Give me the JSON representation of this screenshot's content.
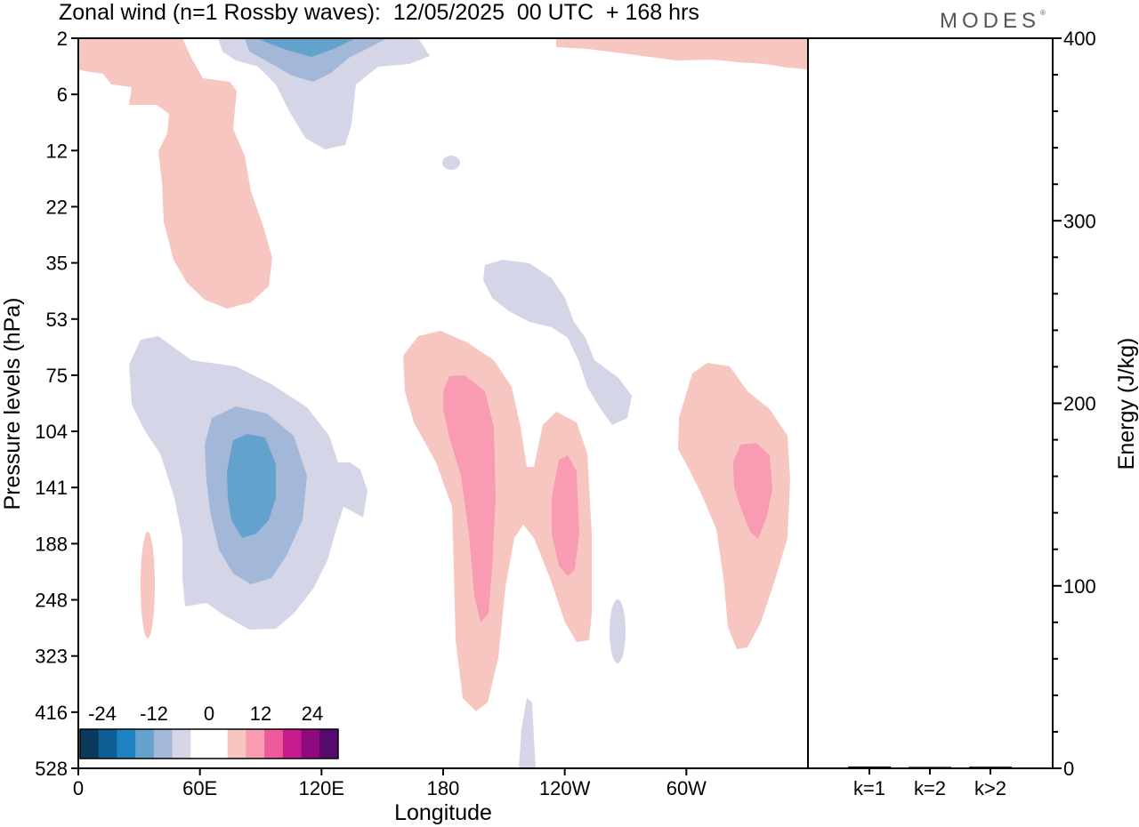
{
  "title": "Zonal wind (n=1 Rossby waves):  12/05/2025  00 UTC  + 168 hrs",
  "logo": "MODES",
  "logo_mark": "®",
  "colors": {
    "neg_levels": [
      "#0c3a5c",
      "#0d5f95",
      "#1e82c0",
      "#62a2cc",
      "#a3b8d8",
      "#d4d6e7"
    ],
    "neutral": "#ffffff",
    "pos_levels": [
      "#f8c6c1",
      "#f89bb3",
      "#ee5b9d",
      "#c81c8e",
      "#8e0b7f",
      "#560a6e"
    ]
  },
  "chart_data": [
    {
      "type": "heatmap",
      "title": "Zonal wind (n=1 Rossby waves):  12/05/2025  00 UTC  + 168 hrs",
      "xlabel": "Longitude",
      "ylabel": "Pressure levels (hPa)",
      "x_ticks": [
        "0",
        "60E",
        "120E",
        "180",
        "120W",
        "60W"
      ],
      "x_tick_degrees": [
        0,
        60,
        120,
        180,
        240,
        300
      ],
      "xlim": [
        0,
        360
      ],
      "y_ticks": [
        "2",
        "6",
        "12",
        "22",
        "35",
        "53",
        "75",
        "104",
        "141",
        "188",
        "248",
        "323",
        "416",
        "528"
      ],
      "colorbar": {
        "labels": [
          "-24",
          "-12",
          "0",
          "12",
          "24"
        ],
        "label_values": [
          -24,
          -12,
          0,
          12,
          24
        ],
        "levels": [
          -27,
          -21,
          -15,
          -9,
          -6,
          -3,
          3,
          6,
          9,
          15,
          21,
          27
        ],
        "bins": 14
      },
      "features": [
        {
          "sign": "positive",
          "max_level": 1,
          "lon": 55,
          "pressure": 15
        },
        {
          "sign": "negative",
          "max_level": 3,
          "lon": 115,
          "pressure": 2
        },
        {
          "sign": "negative",
          "max_level": 3,
          "lon": 80,
          "pressure": 141
        },
        {
          "sign": "positive",
          "max_level": 2,
          "lon": 193,
          "pressure": 120
        },
        {
          "sign": "positive",
          "max_level": 2,
          "lon": 239,
          "pressure": 141
        },
        {
          "sign": "positive",
          "max_level": 2,
          "lon": 330,
          "pressure": 125
        },
        {
          "sign": "negative",
          "max_level": 1,
          "lon": 245,
          "pressure": 60
        }
      ]
    },
    {
      "type": "bar",
      "ylabel": "Energy (J/kg)",
      "categories": [
        "k=1",
        "k=2",
        "k>2"
      ],
      "values": [
        0.5,
        0.3,
        0.4
      ],
      "ylim": [
        0,
        400
      ],
      "y_ticks": [
        "0",
        "100",
        "200",
        "300",
        "400"
      ],
      "y_tick_values": [
        0,
        100,
        200,
        300,
        400
      ]
    }
  ]
}
